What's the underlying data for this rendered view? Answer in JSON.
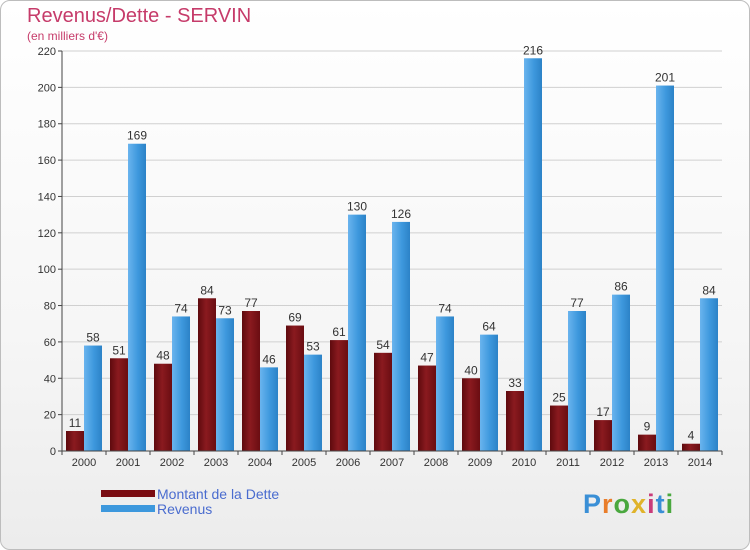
{
  "title": "Revenus/Dette - SERVIN",
  "subtitle": "(en milliers d'€)",
  "colors": {
    "title": "#c63b6a",
    "dette": "#7a0c12",
    "revenus": "#3d98dd",
    "legend_text": "#4a6ccf"
  },
  "legend": {
    "items": [
      {
        "label": "Montant de la Dette",
        "color": "#7a0c12"
      },
      {
        "label": "Revenus",
        "color": "#3d98dd"
      }
    ]
  },
  "logo": {
    "text": "Proxiti"
  },
  "chart_data": {
    "type": "bar",
    "categories": [
      "2000",
      "2001",
      "2002",
      "2003",
      "2004",
      "2005",
      "2006",
      "2007",
      "2008",
      "2009",
      "2010",
      "2011",
      "2012",
      "2013",
      "2014"
    ],
    "series": [
      {
        "name": "Montant de la Dette",
        "values": [
          11,
          51,
          48,
          84,
          77,
          69,
          61,
          54,
          47,
          40,
          33,
          25,
          17,
          9,
          4
        ]
      },
      {
        "name": "Revenus",
        "values": [
          58,
          169,
          74,
          73,
          46,
          53,
          130,
          126,
          74,
          64,
          216,
          77,
          86,
          201,
          84
        ]
      }
    ],
    "ylim": [
      0,
      220
    ],
    "yticks": [
      0,
      20,
      40,
      60,
      80,
      100,
      120,
      140,
      160,
      180,
      200,
      220
    ],
    "grid": true,
    "legend_position": "bottom-left"
  }
}
